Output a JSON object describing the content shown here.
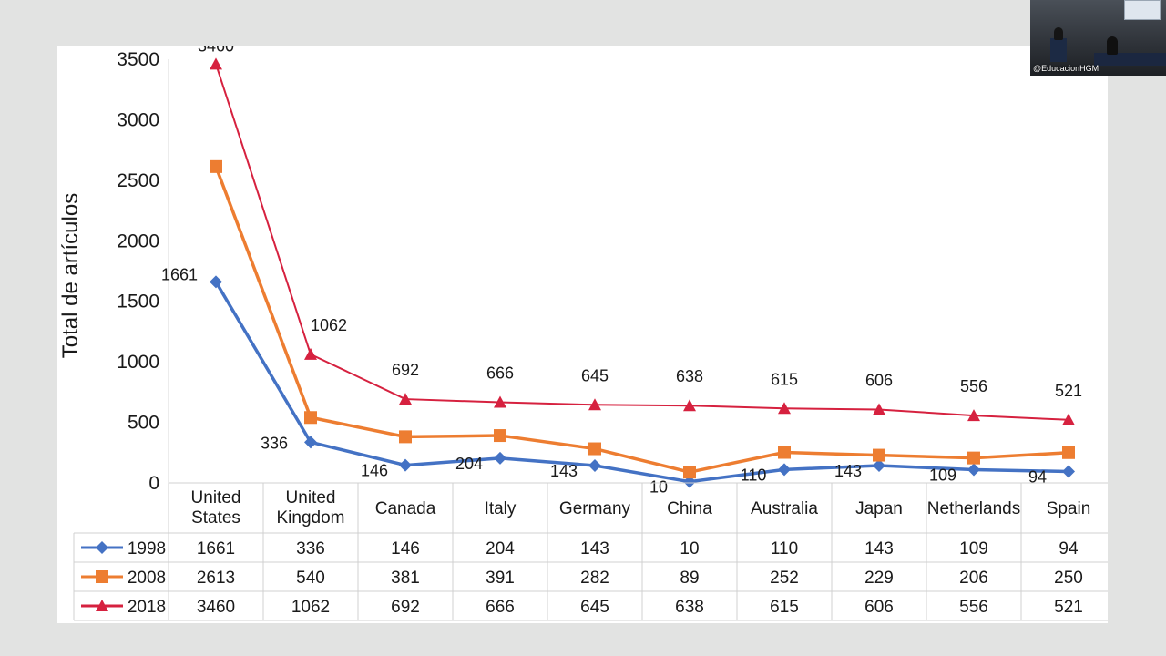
{
  "chart_data": {
    "type": "line",
    "ylabel": "Total de artículos",
    "xlabel": "",
    "ylim": [
      0,
      3500
    ],
    "yticks": [
      0,
      500,
      1000,
      1500,
      2000,
      2500,
      3000,
      3500
    ],
    "categories": [
      [
        "United",
        "States"
      ],
      [
        "United",
        "Kingdom"
      ],
      [
        "Canada"
      ],
      [
        "Italy"
      ],
      [
        "Germany"
      ],
      [
        "China"
      ],
      [
        "Australia"
      ],
      [
        "Japan"
      ],
      [
        "Netherlands"
      ],
      [
        "Spain"
      ]
    ],
    "series": [
      {
        "name": "1998",
        "color": "#4472c4",
        "marker": "diamond",
        "values": [
          1661,
          336,
          146,
          204,
          143,
          10,
          110,
          143,
          109,
          94
        ]
      },
      {
        "name": "2008",
        "color": "#ed7d31",
        "marker": "square",
        "values": [
          2613,
          540,
          381,
          391,
          282,
          89,
          252,
          229,
          206,
          250
        ]
      },
      {
        "name": "2018",
        "color": "#d6213f",
        "marker": "triangle",
        "values": [
          3460,
          1062,
          692,
          666,
          645,
          638,
          615,
          606,
          556,
          521
        ]
      }
    ],
    "labeled_series": [
      "1998",
      "2018"
    ],
    "grid": false,
    "legend": "data-table-below"
  },
  "overlay": {
    "webcam_handle": "@EducacionHGM"
  }
}
